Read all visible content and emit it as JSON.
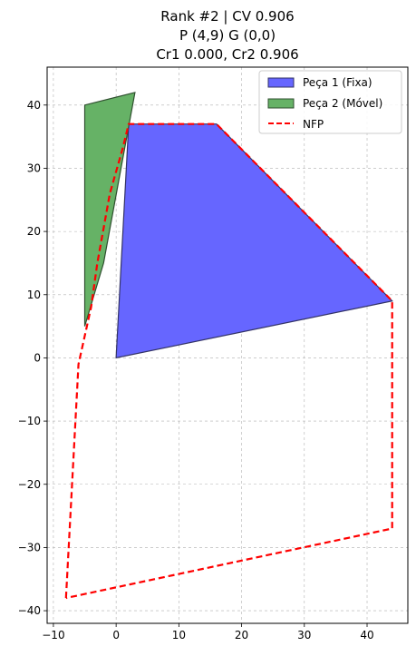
{
  "chart_data": {
    "type": "area",
    "title_lines": [
      "Rank #2 | CV 0.906",
      "P (4,9) G (0,0)",
      "Cr1 0.000, Cr2 0.906"
    ],
    "xlabel": "",
    "ylabel": "",
    "xlim": [
      -11,
      46.5
    ],
    "ylim": [
      -42,
      46
    ],
    "xticks": [
      -10,
      0,
      10,
      20,
      30,
      40
    ],
    "yticks": [
      -40,
      -30,
      -20,
      -10,
      0,
      10,
      20,
      30,
      40
    ],
    "grid": true,
    "legend_position": "top-right",
    "series": [
      {
        "name": "Peça 1 (Fixa)",
        "kind": "polygon",
        "fill": "#6666ff",
        "edge": "#333366",
        "points": [
          [
            0,
            0
          ],
          [
            2,
            37
          ],
          [
            16,
            37
          ],
          [
            44,
            9
          ]
        ]
      },
      {
        "name": "Peça 2 (Móvel)",
        "kind": "polygon",
        "fill": "#66b266",
        "edge": "#2f4f2f",
        "points": [
          [
            -5,
            5
          ],
          [
            -2,
            15
          ],
          [
            3,
            42
          ],
          [
            -5,
            40
          ]
        ]
      },
      {
        "name": "NFP",
        "kind": "dashed-line",
        "color": "#ff0000",
        "points": [
          [
            -8,
            -38
          ],
          [
            -6,
            -1
          ],
          [
            -4,
            8
          ],
          [
            -3,
            15
          ],
          [
            -1,
            26
          ],
          [
            1,
            33
          ],
          [
            2,
            37
          ],
          [
            16,
            37
          ],
          [
            44,
            9
          ],
          [
            44,
            -27
          ],
          [
            -8,
            -38
          ]
        ]
      }
    ]
  }
}
